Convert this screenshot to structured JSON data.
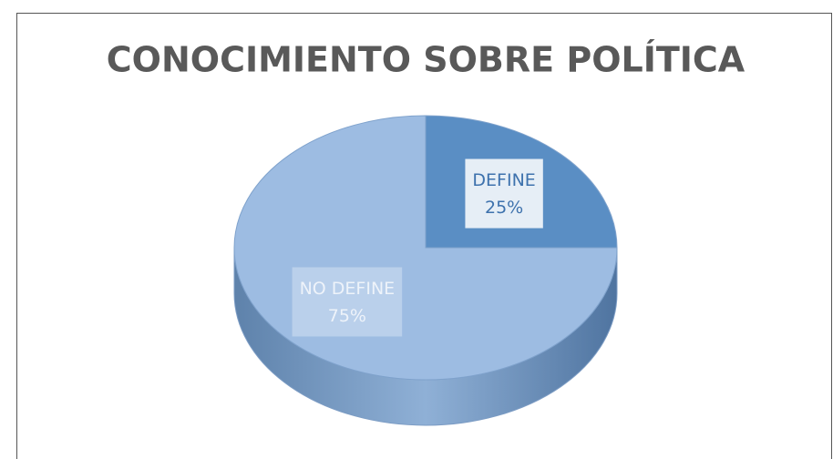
{
  "chart_data": {
    "type": "pie",
    "title": "CONOCIMIENTO SOBRE POLÍTICA",
    "categories": [
      "DEFINE",
      "NO DEFINE"
    ],
    "values": [
      25,
      75
    ],
    "value_labels": [
      "25%",
      "75%"
    ],
    "colors": [
      "#5a8ec4",
      "#9dbce2"
    ]
  }
}
